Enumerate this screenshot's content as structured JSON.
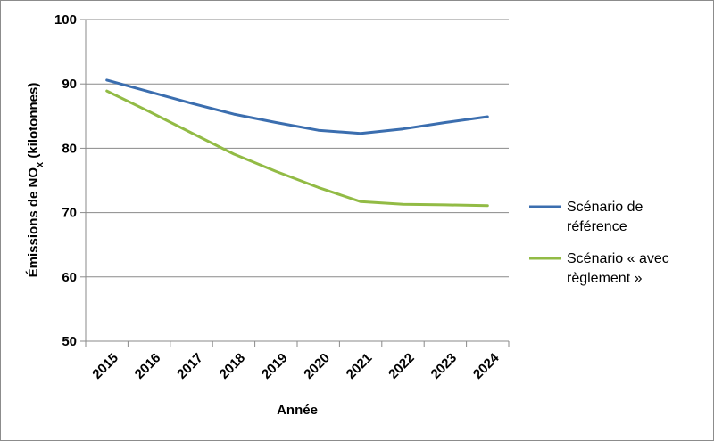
{
  "chart_data": {
    "type": "line",
    "categories": [
      "2015",
      "2016",
      "2017",
      "2018",
      "2019",
      "2020",
      "2021",
      "2022",
      "2023",
      "2024"
    ],
    "series": [
      {
        "name_lines": [
          "Scénario de",
          "référence"
        ],
        "color": "#3b6eaf",
        "values": [
          90.6,
          88.8,
          87.0,
          85.3,
          84.0,
          82.8,
          82.3,
          83.0,
          84.0,
          84.9
        ]
      },
      {
        "name_lines": [
          "Scénario « avec",
          "règlement »"
        ],
        "color": "#92bb45",
        "values": [
          88.9,
          85.7,
          82.4,
          79.1,
          76.4,
          73.9,
          71.7,
          71.3,
          71.2,
          71.1
        ]
      }
    ],
    "ylim": [
      50,
      100
    ],
    "yticks": [
      50,
      60,
      70,
      80,
      90,
      100
    ],
    "xlabel": "Année",
    "ylabel_main": "Émissions de NO",
    "ylabel_sub": "x",
    "ylabel_tail": " (kilotonnes)",
    "grid": true,
    "legend_position": "right"
  }
}
